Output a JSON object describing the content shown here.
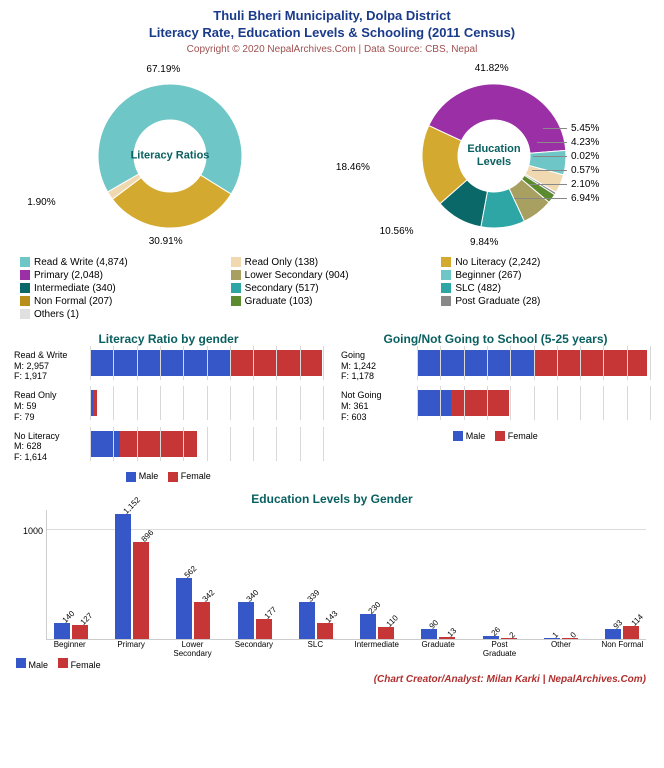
{
  "title1": "Thuli Bheri Municipality, Dolpa District",
  "title2": "Literacy Rate, Education Levels & Schooling (2011 Census)",
  "copyright": "Copyright © 2020 NepalArchives.Com | Data Source: CBS, Nepal",
  "credit": "(Chart Creator/Analyst: Milan Karki | NepalArchives.Com)",
  "colors": {
    "male": "#3657c7",
    "female": "#c73636",
    "title": "#1a3a8a",
    "section": "#0a6060",
    "copyright": "#a05050",
    "credit": "#b03030",
    "grid": "#b8b8b8"
  },
  "donut1": {
    "center": "Literacy Ratios",
    "slices": [
      {
        "label": "67.19%",
        "value": 67.19,
        "color": "#6fc6c6"
      },
      {
        "label": "30.91%",
        "value": 30.91,
        "color": "#d3aa2f"
      },
      {
        "label": "1.90%",
        "value": 1.9,
        "color": "#f0d9b0"
      }
    ]
  },
  "donut2": {
    "center": "Education Levels",
    "slices": [
      {
        "label": "41.82%",
        "value": 41.82,
        "color": "#9b2fa6"
      },
      {
        "label": "5.45%",
        "value": 5.45,
        "color": "#6fc6c6"
      },
      {
        "label": "4.23%",
        "value": 4.23,
        "color": "#f0d9b0"
      },
      {
        "label": "0.02%",
        "value": 0.02,
        "color": "#e0e0e0"
      },
      {
        "label": "0.57%",
        "value": 0.57,
        "color": "#888888"
      },
      {
        "label": "2.10%",
        "value": 2.1,
        "color": "#5c8a2f"
      },
      {
        "label": "6.94%",
        "value": 6.94,
        "color": "#a8a060"
      },
      {
        "label": "9.84%",
        "value": 9.84,
        "color": "#2fa6a6"
      },
      {
        "label": "10.56%",
        "value": 10.56,
        "color": "#0a6868"
      },
      {
        "label": "18.46%",
        "value": 18.46,
        "color": "#d3aa2f"
      }
    ]
  },
  "legend": [
    {
      "label": "Read & Write (4,874)",
      "color": "#6fc6c6"
    },
    {
      "label": "Read Only (138)",
      "color": "#f0d9b0"
    },
    {
      "label": "No Literacy (2,242)",
      "color": "#d3aa2f"
    },
    {
      "label": "Primary (2,048)",
      "color": "#9b2fa6"
    },
    {
      "label": "Lower Secondary (904)",
      "color": "#a8a060"
    },
    {
      "label": "Beginner (267)",
      "color": "#6fc6c6"
    },
    {
      "label": "Intermediate (340)",
      "color": "#0a6868"
    },
    {
      "label": "Secondary (517)",
      "color": "#2fa6a6"
    },
    {
      "label": "SLC (482)",
      "color": "#2fa6a6"
    },
    {
      "label": "Non Formal (207)",
      "color": "#b88f1a"
    },
    {
      "label": "Graduate (103)",
      "color": "#5c8a2f"
    },
    {
      "label": "Post Graduate (28)",
      "color": "#888888"
    },
    {
      "label": "Others (1)",
      "color": "#e0e0e0"
    }
  ],
  "literacy_gender": {
    "title": "Literacy Ratio by gender",
    "max": 4900,
    "rows": [
      {
        "name": "Read & Write",
        "m": 2957,
        "f": 1917
      },
      {
        "name": "Read Only",
        "m": 59,
        "f": 79
      },
      {
        "name": "No Literacy",
        "m": 628,
        "f": 1614
      }
    ]
  },
  "schooling": {
    "title": "Going/Not Going to School (5-25 years)",
    "max": 2450,
    "rows": [
      {
        "name": "Going",
        "m": 1242,
        "f": 1178
      },
      {
        "name": "Not Going",
        "m": 361,
        "f": 603
      }
    ]
  },
  "mf_legend": {
    "male": "Male",
    "female": "Female"
  },
  "edu_gender": {
    "title": "Education Levels by Gender",
    "ymax": 1200,
    "ytick": 1000,
    "cats": [
      {
        "name": "Beginner",
        "m": 140,
        "f": 127
      },
      {
        "name": "Primary",
        "m": 1152,
        "f": 896
      },
      {
        "name": "Lower Secondary",
        "m": 562,
        "f": 342
      },
      {
        "name": "Secondary",
        "m": 340,
        "f": 177
      },
      {
        "name": "SLC",
        "m": 339,
        "f": 143
      },
      {
        "name": "Intermediate",
        "m": 230,
        "f": 110
      },
      {
        "name": "Graduate",
        "m": 90,
        "f": 13
      },
      {
        "name": "Post Graduate",
        "m": 26,
        "f": 2
      },
      {
        "name": "Other",
        "m": 1,
        "f": 0
      },
      {
        "name": "Non Formal",
        "m": 93,
        "f": 114
      }
    ]
  }
}
